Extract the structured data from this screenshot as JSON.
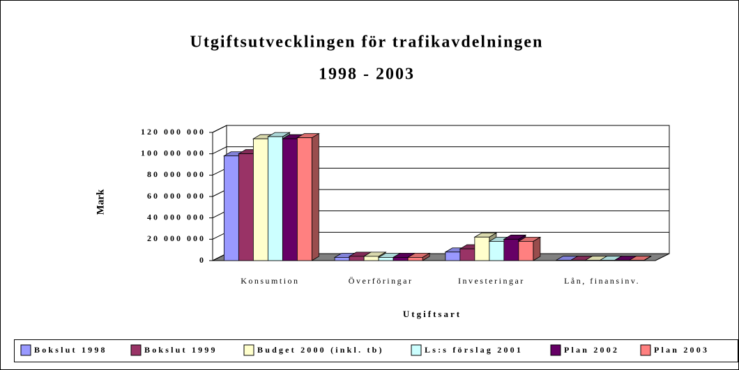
{
  "chart_data": {
    "type": "bar3d",
    "title_lines": [
      "Utgiftsutvecklingen för trafikavdelningen",
      "1998 - 2003"
    ],
    "y_label": "Mark",
    "x_label": "Utgiftsart",
    "categories": [
      "Konsumtion",
      "Överföringar",
      "Investeringar",
      "Lån, finansinv."
    ],
    "series": [
      {
        "name": "Bokslut 1998",
        "color": "#9999ff",
        "values": [
          98000000,
          3000000,
          8000000,
          300000
        ]
      },
      {
        "name": "Bokslut 1999",
        "color": "#993366",
        "values": [
          100000000,
          4000000,
          11000000,
          300000
        ]
      },
      {
        "name": "Budget 2000 (inkl. tb)",
        "color": "#ffffcc",
        "values": [
          114000000,
          4000000,
          22000000,
          300000
        ]
      },
      {
        "name": "Ls:s förslag 2001",
        "color": "#ccffff",
        "values": [
          116000000,
          3000000,
          18000000,
          300000
        ]
      },
      {
        "name": "Plan 2002",
        "color": "#660066",
        "values": [
          114000000,
          3000000,
          20000000,
          300000
        ]
      },
      {
        "name": "Plan 2003",
        "color": "#ff8080",
        "values": [
          115000000,
          3000000,
          18000000,
          300000
        ]
      }
    ],
    "ylim": [
      0,
      120000000
    ],
    "yticks": [
      0,
      {
        "value": 20000000,
        "label": "20 000 000"
      },
      {
        "value": 40000000,
        "label": "40 000 000"
      },
      {
        "value": 60000000,
        "label": "60 000 000"
      },
      {
        "value": 80000000,
        "label": "80 000 000"
      },
      {
        "value": 100000000,
        "label": "100 000 000"
      },
      {
        "value": 120000000,
        "label": "120 000 000"
      }
    ],
    "grid": true,
    "legend": "bottom"
  }
}
